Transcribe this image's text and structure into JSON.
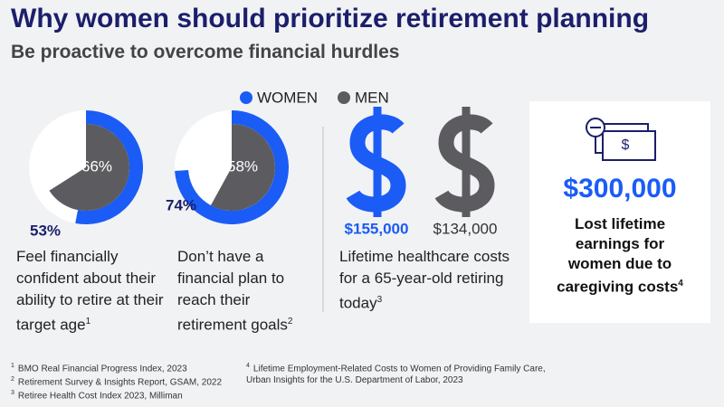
{
  "header": {
    "title": "Why women should prioritize retirement planning",
    "subtitle": "Be proactive to overcome financial hurdles"
  },
  "chart_data": [
    {
      "type": "donut",
      "series": [
        {
          "name": "WOMEN",
          "color": "#1a5cf5",
          "values": [
            53
          ],
          "value_labels": [
            "53%"
          ]
        },
        {
          "name": "MEN",
          "color": "#5c5c60",
          "values": [
            66
          ],
          "value_labels": [
            "66%"
          ]
        }
      ],
      "caption": "Feel financially confident about their ability to retire at their target age",
      "footnote_ref": "1"
    },
    {
      "type": "donut",
      "series": [
        {
          "name": "WOMEN",
          "color": "#1a5cf5",
          "values": [
            74
          ],
          "value_labels": [
            "74%"
          ]
        },
        {
          "name": "MEN",
          "color": "#5c5c60",
          "values": [
            58
          ],
          "value_labels": [
            "58%"
          ]
        }
      ],
      "caption": "Don’t have a financial plan to reach their retirement goals",
      "footnote_ref": "2"
    },
    {
      "type": "pictogram",
      "series": [
        {
          "name": "WOMEN",
          "color": "#1a5cf5",
          "values": [
            155000
          ],
          "value_labels": [
            "$155,000"
          ]
        },
        {
          "name": "MEN",
          "color": "#5c5c60",
          "values": [
            134000
          ],
          "value_labels": [
            "$134,000"
          ]
        }
      ],
      "caption": "Lifetime healthcare costs for a 65-year-old retiring today",
      "footnote_ref": "3"
    }
  ],
  "card": {
    "amount": "$300,000",
    "caption": "Lost lifetime earnings for women due to caregiving costs",
    "footnote_ref": "4"
  },
  "footnotes": [
    {
      "number": "1",
      "text": "BMO Real Financial Progress Index, 2023"
    },
    {
      "number": "2",
      "text": "Retirement Survey & Insights Report, GSAM, 2022"
    },
    {
      "number": "3",
      "text": "Retiree Health Cost Index 2023, Milliman"
    },
    {
      "number": "4",
      "text": "Lifetime Employment-Related Costs to Women of Providing Family Care, Urban Insights for the U.S. Department of Labor, 2023"
    }
  ]
}
